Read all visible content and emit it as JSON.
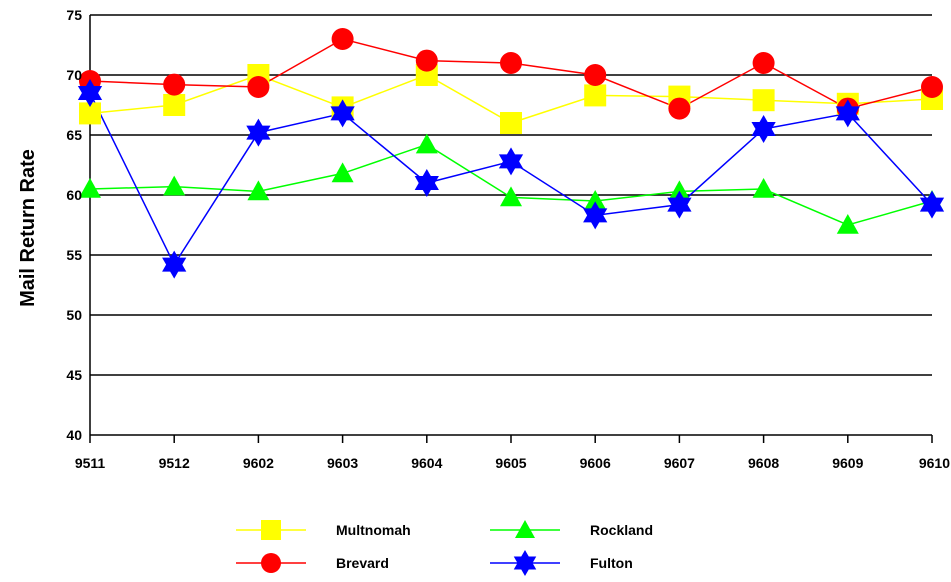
{
  "chart_data": {
    "type": "line",
    "title": "",
    "xlabel": "",
    "ylabel": "Mail Return Rate",
    "ylim": [
      40,
      75
    ],
    "yticks": [
      40,
      45,
      50,
      55,
      60,
      65,
      70,
      75
    ],
    "ytick_labels": [
      "40",
      "45",
      "50",
      "55",
      "60",
      "65",
      "70",
      "75"
    ],
    "grid": "horizontal",
    "legend_position": "bottom",
    "categories": [
      "9511",
      "9512",
      "9602",
      "9603",
      "9604",
      "9605",
      "9606",
      "9607",
      "9608",
      "9609",
      "9610"
    ],
    "series": [
      {
        "name": "Multnomah",
        "color": "#ffff00",
        "marker": "square",
        "values": [
          66.8,
          67.5,
          70.0,
          67.3,
          70.0,
          66.0,
          68.3,
          68.2,
          67.9,
          67.6,
          68.0
        ]
      },
      {
        "name": "Brevard",
        "color": "#ff0000",
        "marker": "circle",
        "values": [
          69.5,
          69.2,
          69.0,
          73.0,
          71.2,
          71.0,
          70.0,
          67.2,
          71.0,
          67.2,
          69.0
        ]
      },
      {
        "name": "Rockland",
        "color": "#00ff00",
        "marker": "triangle",
        "values": [
          60.5,
          60.7,
          60.3,
          61.8,
          64.2,
          59.8,
          59.5,
          60.3,
          60.5,
          57.5,
          59.5
        ]
      },
      {
        "name": "Fulton",
        "color": "#0000ff",
        "marker": "star",
        "values": [
          68.5,
          54.2,
          65.2,
          66.8,
          61.0,
          62.8,
          58.3,
          59.2,
          65.5,
          66.8,
          59.2
        ]
      }
    ]
  }
}
